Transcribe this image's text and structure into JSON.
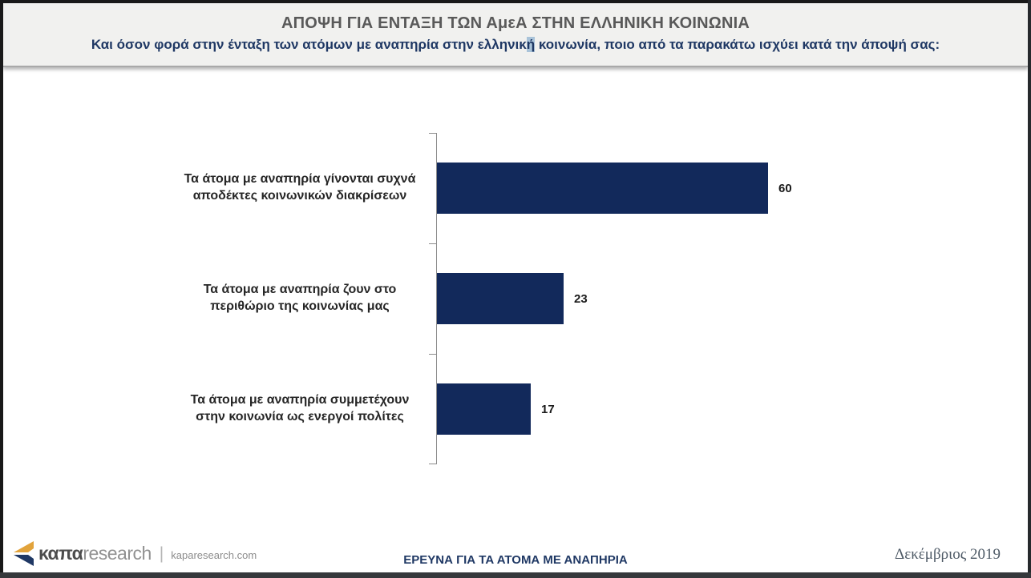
{
  "header": {
    "title": "ΑΠΟΨΗ ΓΙΑ ΕΝΤΑΞΗ ΤΩΝ ΑμεΑ ΣΤΗΝ ΕΛΛΗΝΙΚΗ ΚΟΙΝΩΝΙΑ",
    "subtitle_before": "Και όσον φορά στην ένταξη των ατόμων με αναπηρία στην ελληνικ",
    "subtitle_highlight": "ή",
    "subtitle_after": " κοινωνία, ποιο από τα παρακάτω ισχύει κατά την άποψή σας:"
  },
  "chart_data": {
    "type": "bar",
    "orientation": "horizontal",
    "title": "ΑΠΟΨΗ ΓΙΑ ΕΝΤΑΞΗ ΤΩΝ ΑμεΑ ΣΤΗΝ ΕΛΛΗΝΙΚΗ ΚΟΙΝΩΝΙΑ",
    "categories": [
      "Τα άτομα με αναπηρία γίνονται συχνά αποδέκτες κοινωνικών διακρίσεων",
      "Τα άτομα με αναπηρία ζουν στο περιθώριο της κοινωνίας μας",
      "Τα άτομα με αναπηρία συμμετέχουν στην κοινωνία ως ενεργοί πολίτες"
    ],
    "values": [
      60,
      23,
      17
    ],
    "data_labels": true,
    "xlim": [
      0,
      60
    ],
    "grid": false,
    "legend": false,
    "bar_color": "#12295b",
    "axis_color": "#8c8c8c"
  },
  "footer": {
    "logo_text_bold": "καπα",
    "logo_text_light": "research",
    "logo_separator": "|",
    "website": "kaparesearch.com",
    "center_text": "ΕΡΕΥΝΑ ΓΙΑ ΤΑ ΑΤΟΜΑ ΜΕ ΑΝΑΠΗΡΙΑ",
    "date": "Δεκέμβριος 2019"
  },
  "colors": {
    "bar": "#12295b",
    "accent_navy": "#1f3864",
    "title_gray": "#595959",
    "header_bg": "#f1f1ef",
    "highlight": "#a9c3d9",
    "logo_gold": "#e2a33b",
    "logo_navy": "#1f3864"
  }
}
